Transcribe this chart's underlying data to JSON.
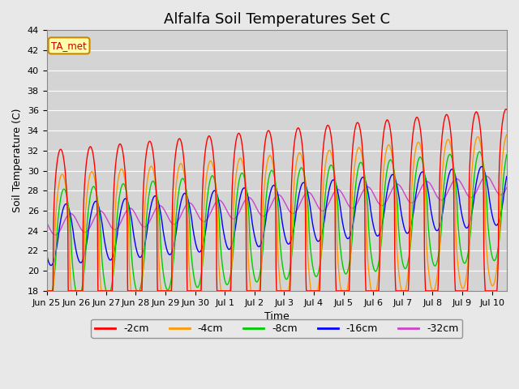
{
  "title": "Alfalfa Soil Temperatures Set C",
  "xlabel": "Time",
  "ylabel": "Soil Temperature (C)",
  "ylim": [
    18,
    44
  ],
  "background_color": "#e8e8e8",
  "plot_bg_color": "#d4d4d4",
  "grid_color": "#ffffff",
  "series": {
    "-2cm": {
      "color": "#ff0000"
    },
    "-4cm": {
      "color": "#ff9900"
    },
    "-8cm": {
      "color": "#00cc00"
    },
    "-16cm": {
      "color": "#0000ff"
    },
    "-32cm": {
      "color": "#cc44cc"
    }
  },
  "legend_label": "TA_met",
  "xtick_labels": [
    "Jun 25",
    "Jun 26",
    "Jun 27",
    "Jun 28",
    "Jun 29",
    "Jun 30",
    "Jul 1",
    "Jul 2",
    "Jul 3",
    "Jul 4",
    "Jul 5",
    "Jul 6",
    "Jul 7",
    "Jul 8",
    "Jul 9",
    "Jul 10"
  ],
  "title_fontsize": 13,
  "axis_fontsize": 9,
  "tick_fontsize": 8
}
